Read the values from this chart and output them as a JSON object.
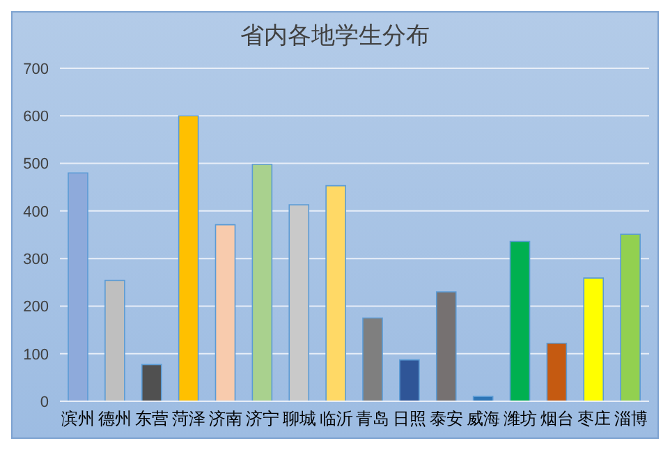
{
  "chart_data": {
    "type": "bar",
    "title": "省内各地学生分布",
    "categories": [
      "滨州",
      "德州",
      "东营",
      "菏泽",
      "济南",
      "济宁",
      "聊城",
      "临沂",
      "青岛",
      "日照",
      "泰安",
      "威海",
      "潍坊",
      "烟台",
      "枣庄",
      "淄博"
    ],
    "values": [
      480,
      254,
      77,
      600,
      371,
      498,
      413,
      453,
      175,
      87,
      230,
      10,
      336,
      122,
      259,
      351
    ],
    "colors": [
      "#8eaadb",
      "#bfbfbf",
      "#505050",
      "#ffc000",
      "#f8cbad",
      "#a9d18e",
      "#c9c9c9",
      "#ffd966",
      "#7f7f7f",
      "#2f5597",
      "#767171",
      "#2e75b6",
      "#00b050",
      "#c55a11",
      "#ffff00",
      "#92d050"
    ],
    "ylim": [
      0,
      700
    ],
    "yticks": [
      0,
      100,
      200,
      300,
      400,
      500,
      600,
      700
    ],
    "grid": "y",
    "legend": false
  }
}
